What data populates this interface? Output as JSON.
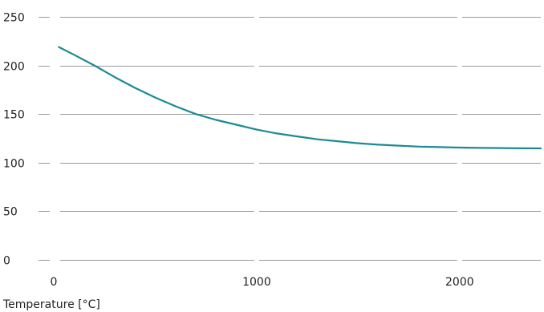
{
  "chart_data": {
    "type": "line",
    "title": "",
    "xlabel": "Temperature [°C]",
    "ylabel": "",
    "xlim": [
      0,
      2400
    ],
    "ylim": [
      0,
      250
    ],
    "x_ticks": [
      0,
      1000,
      2000
    ],
    "y_ticks": [
      0,
      50,
      100,
      150,
      200,
      250
    ],
    "x_tick_labels": [
      "0",
      "1000",
      "2000"
    ],
    "y_tick_labels": [
      "0",
      "50",
      "100",
      "150",
      "200",
      "250"
    ],
    "grid": "horizontal",
    "legend": "none",
    "series": [
      {
        "color": "#1b8a94",
        "x": [
          25,
          100,
          200,
          300,
          400,
          500,
          600,
          700,
          800,
          900,
          1000,
          1100,
          1200,
          1300,
          1400,
          1500,
          1600,
          1700,
          1800,
          1900,
          2000,
          2100,
          2200,
          2300,
          2400
        ],
        "y": [
          219,
          211,
          200,
          188,
          177,
          167,
          158,
          150,
          144,
          139,
          134,
          130,
          127,
          124,
          122,
          120,
          118.5,
          117.5,
          116.5,
          116,
          115.5,
          115.2,
          115,
          114.8,
          114.7
        ]
      }
    ]
  },
  "colors": {
    "grid": "#9a9a9a",
    "text": "#222222"
  }
}
